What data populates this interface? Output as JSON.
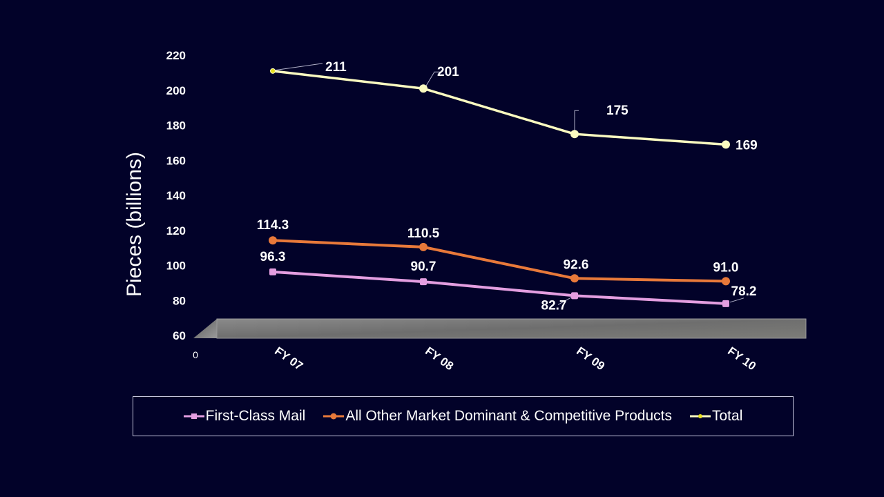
{
  "chart_data": {
    "type": "line",
    "title": "",
    "xlabel": "",
    "ylabel": "Pieces (billions)",
    "categories": [
      "FY 07",
      "FY 08",
      "FY 09",
      "FY 10"
    ],
    "ylim": [
      60,
      220
    ],
    "yticks": [
      "60",
      "80",
      "100",
      "120",
      "140",
      "160",
      "180",
      "200",
      "220"
    ],
    "floor_label": "0",
    "grid": false,
    "legend_position": "bottom",
    "series": [
      {
        "name": "First-Class Mail",
        "color": "#e39ee0",
        "marker": "square",
        "values": [
          96.3,
          90.7,
          82.7,
          78.2
        ],
        "labels": [
          "96.3",
          "90.7",
          "82.7",
          "78.2"
        ]
      },
      {
        "name": "All Other Market Dominant & Competitive Products",
        "color": "#e8793a",
        "marker": "circle",
        "values": [
          114.3,
          110.5,
          92.6,
          91.0
        ],
        "labels": [
          "114.3",
          "110.5",
          "92.6",
          "91.0"
        ]
      },
      {
        "name": "Total",
        "color": "#fafac0",
        "marker": "circle",
        "values": [
          211,
          201,
          175,
          169
        ],
        "labels": [
          "211",
          "201",
          "175",
          "169"
        ]
      }
    ]
  }
}
